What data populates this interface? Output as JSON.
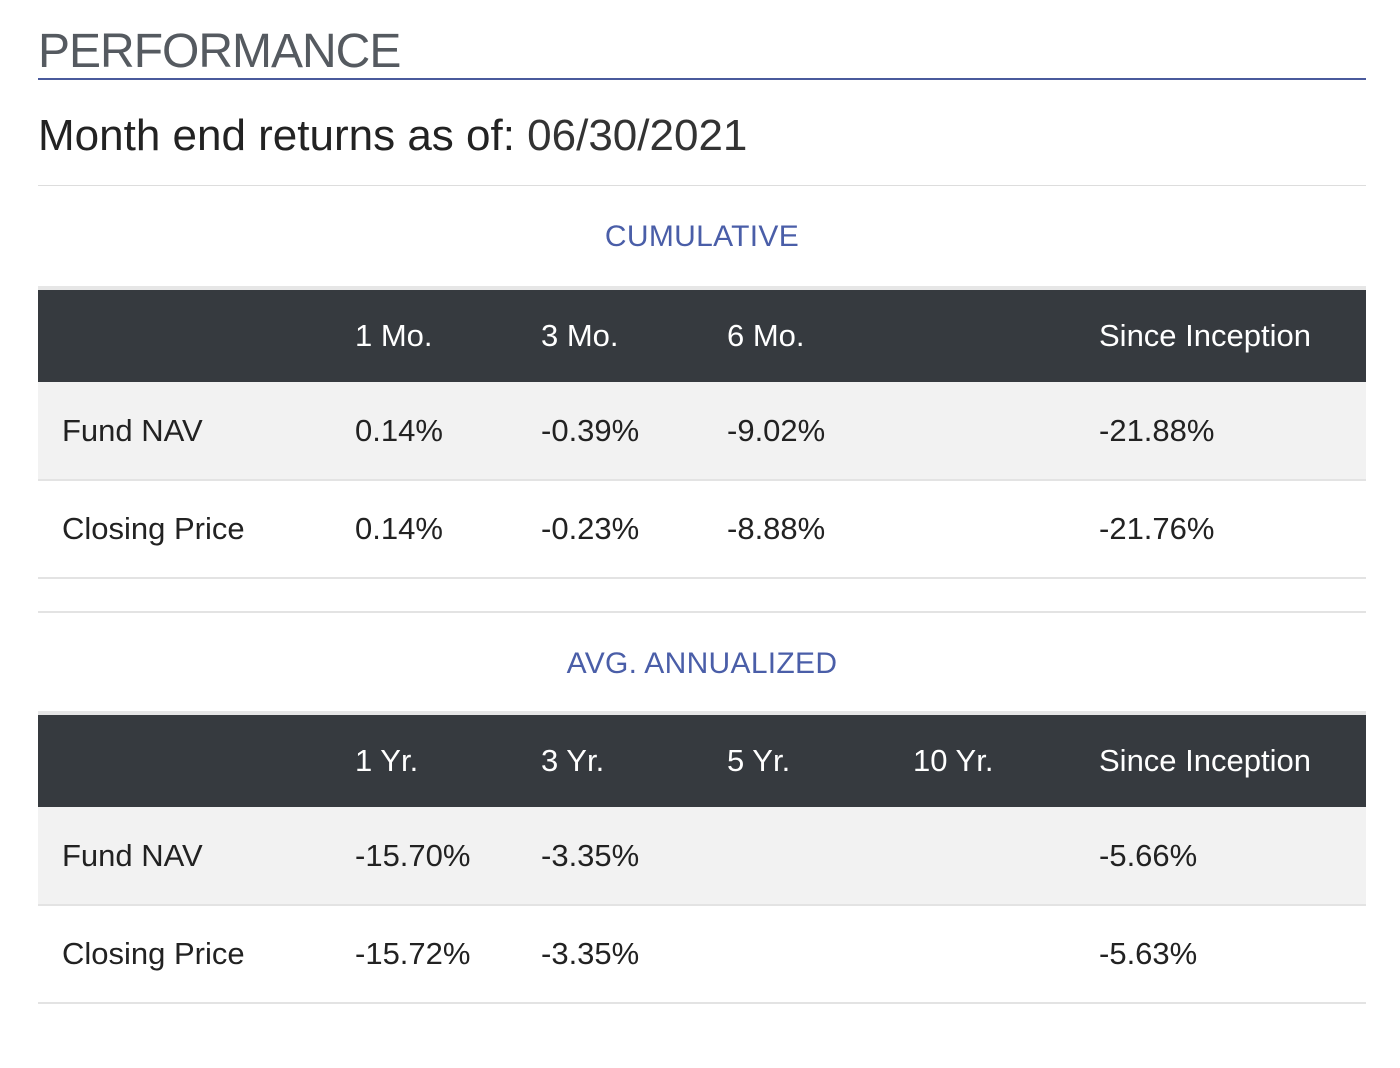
{
  "section_title": "PERFORMANCE",
  "as_of": {
    "label": "Month end returns as of:",
    "date": "06/30/2021"
  },
  "cumulative": {
    "title": "CUMULATIVE",
    "headers": [
      "",
      "1 Mo.",
      "3 Mo.",
      "6 Mo.",
      "",
      "Since Inception"
    ],
    "rows": [
      {
        "label": "Fund NAV",
        "values": [
          "0.14%",
          "-0.39%",
          "-9.02%",
          "",
          "-21.88%"
        ]
      },
      {
        "label": "Closing Price",
        "values": [
          "0.14%",
          "-0.23%",
          "-8.88%",
          "",
          "-21.76%"
        ]
      }
    ]
  },
  "annualized": {
    "title": "AVG. ANNUALIZED",
    "headers": [
      "",
      "1 Yr.",
      "3 Yr.",
      "5 Yr.",
      "10 Yr.",
      "Since Inception"
    ],
    "rows": [
      {
        "label": "Fund NAV",
        "values": [
          "-15.70%",
          "-3.35%",
          "",
          "",
          "-5.66%"
        ]
      },
      {
        "label": "Closing Price",
        "values": [
          "-15.72%",
          "-3.35%",
          "",
          "",
          "-5.63%"
        ]
      }
    ]
  },
  "colors": {
    "accent": "#4a5ea8",
    "header_bg": "#363a3f",
    "row_shade": "#f2f2f2"
  }
}
